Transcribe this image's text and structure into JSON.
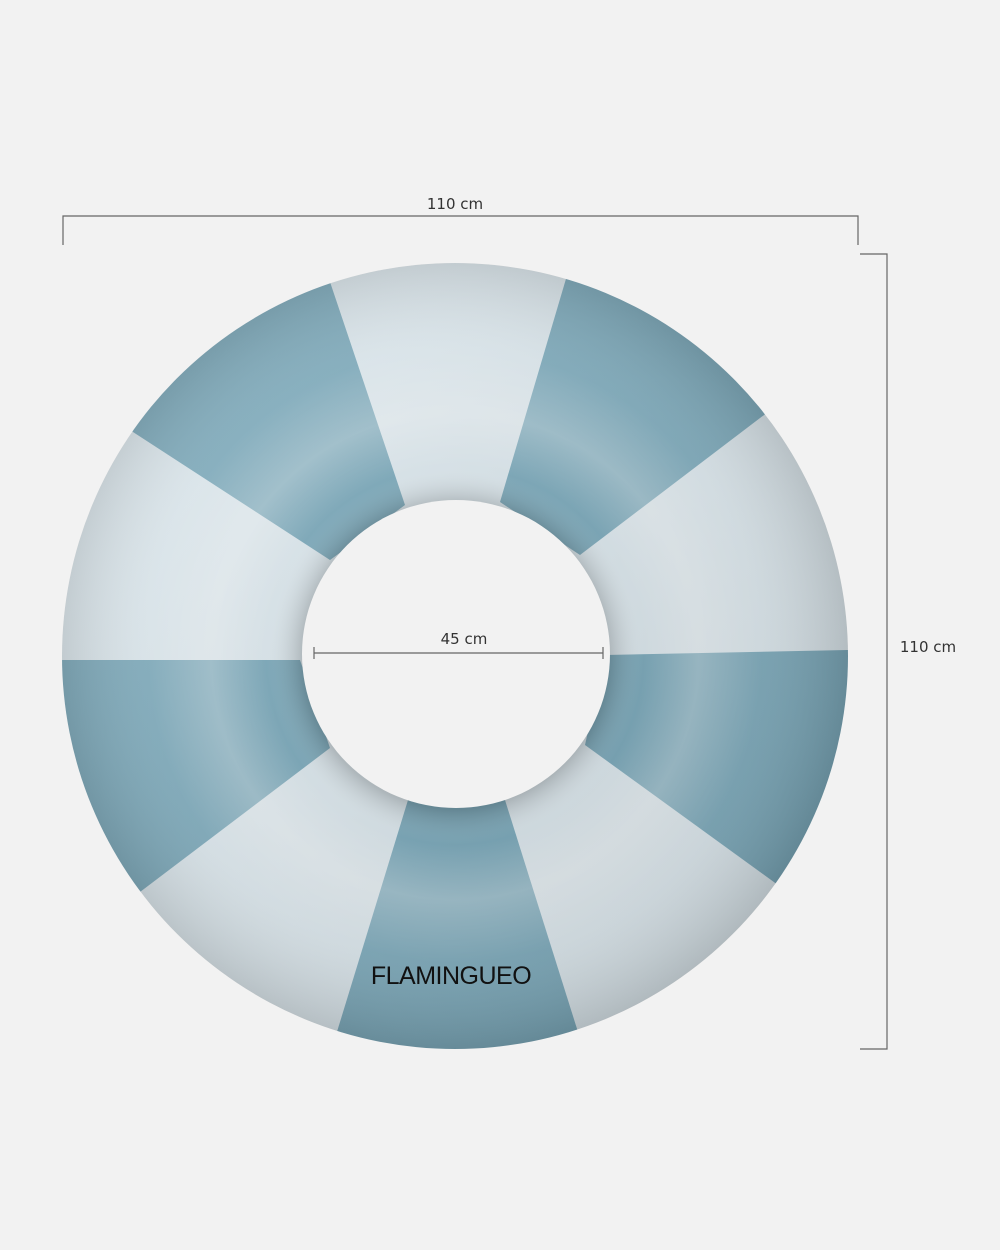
{
  "dimensions": {
    "width_label": "110 cm",
    "height_label": "110 cm",
    "inner_diameter_label": "45 cm"
  },
  "product": {
    "brand_text": "FLAMINGUEO",
    "stripe_count": 10
  },
  "colors": {
    "background": "#f2f2f2",
    "stripe_dark": "#7aa9bb",
    "stripe_light": "#dde9ef",
    "dimension_line": "#666666"
  }
}
